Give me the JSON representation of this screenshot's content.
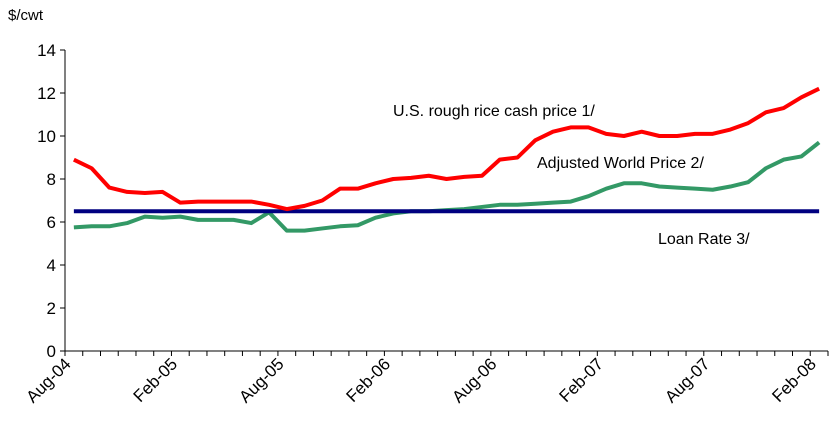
{
  "chart_data": {
    "type": "line",
    "y_label": "$/cwt",
    "categories": [
      "Aug-04",
      null,
      null,
      null,
      null,
      null,
      "Feb-05",
      null,
      null,
      null,
      null,
      null,
      "Aug-05",
      null,
      null,
      null,
      null,
      null,
      "Feb-06",
      null,
      null,
      null,
      null,
      null,
      "Aug-06",
      null,
      null,
      null,
      null,
      null,
      "Feb-07",
      null,
      null,
      null,
      null,
      null,
      "Aug-07",
      null,
      null,
      null,
      null,
      null,
      "Feb-08"
    ],
    "series": [
      {
        "name": "U.S. rough rice cash price 1/",
        "color": "#ff0000",
        "values": [
          8.9,
          8.5,
          7.6,
          7.4,
          7.35,
          7.4,
          6.9,
          6.95,
          6.95,
          6.95,
          6.95,
          6.8,
          6.6,
          6.75,
          7.0,
          7.55,
          7.55,
          7.8,
          8.0,
          8.05,
          8.15,
          8.0,
          8.1,
          8.15,
          8.9,
          9.0,
          9.8,
          10.2,
          10.4,
          10.4,
          10.1,
          10.0,
          10.2,
          10.0,
          10.0,
          10.1,
          10.1,
          10.3,
          10.6,
          11.1,
          11.3,
          11.8,
          12.2
        ]
      },
      {
        "name": "Adjusted World Price 2/",
        "color": "#339966",
        "values": [
          5.75,
          5.8,
          5.8,
          5.95,
          6.25,
          6.2,
          6.25,
          6.1,
          6.1,
          6.1,
          5.95,
          6.45,
          5.6,
          5.6,
          5.7,
          5.8,
          5.85,
          6.2,
          6.4,
          6.5,
          6.5,
          6.55,
          6.6,
          6.7,
          6.8,
          6.8,
          6.85,
          6.9,
          6.95,
          7.2,
          7.55,
          7.8,
          7.8,
          7.65,
          7.6,
          7.55,
          7.5,
          7.65,
          7.85,
          8.5,
          8.9,
          9.05,
          9.7
        ]
      },
      {
        "name": "Loan Rate 3/",
        "color": "#000080",
        "values": [
          6.5,
          6.5,
          6.5,
          6.5,
          6.5,
          6.5,
          6.5,
          6.5,
          6.5,
          6.5,
          6.5,
          6.5,
          6.5,
          6.5,
          6.5,
          6.5,
          6.5,
          6.5,
          6.5,
          6.5,
          6.5,
          6.5,
          6.5,
          6.5,
          6.5,
          6.5,
          6.5,
          6.5,
          6.5,
          6.5,
          6.5,
          6.5,
          6.5,
          6.5,
          6.5,
          6.5,
          6.5,
          6.5,
          6.5,
          6.5,
          6.5,
          6.5,
          6.5
        ]
      }
    ],
    "ylim": [
      0,
      14
    ],
    "yticks": [
      0,
      2,
      4,
      6,
      8,
      10,
      12,
      14
    ],
    "grid": false
  }
}
